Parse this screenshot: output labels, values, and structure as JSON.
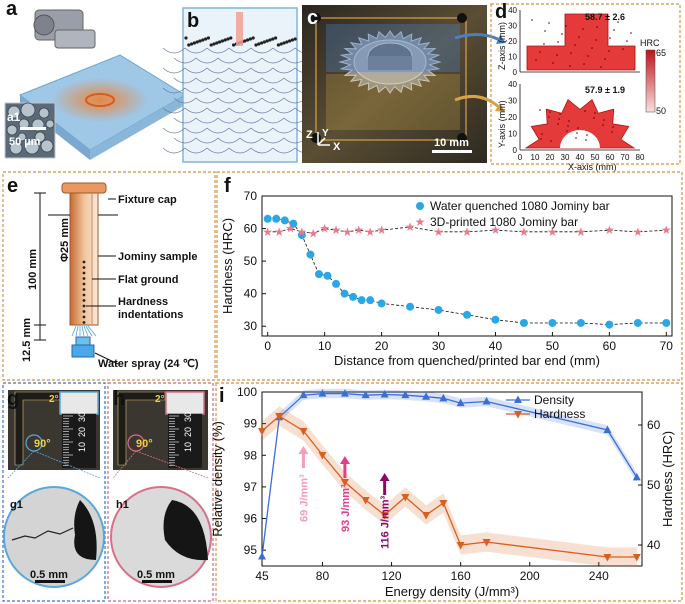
{
  "panels": {
    "a": {
      "label": "a",
      "inset_label": "a1",
      "scale": "50 µm"
    },
    "b": {
      "label": "b"
    },
    "c": {
      "label": "c",
      "scale": "10 mm",
      "axes": [
        "Z",
        "Y",
        "X"
      ]
    },
    "d": {
      "label": "d",
      "top_value": "58.7 ± 2.6",
      "bottom_value": "57.9 ± 1.9",
      "colorbar_title": "HRC",
      "colorbar_max": "65",
      "colorbar_min": "50",
      "top_ylabel": "Z-axis (mm)",
      "bottom_ylabel": "Y-axis (mm)",
      "bottom_xlabel": "X-axis (mm)",
      "top_yticks": [
        "40",
        "30",
        "20",
        "10",
        "0"
      ],
      "bottom_yticks": [
        "40",
        "30",
        "20",
        "10",
        "0"
      ],
      "xticks": [
        "0",
        "10",
        "20",
        "30",
        "40",
        "50",
        "60",
        "70",
        "80"
      ],
      "colors": {
        "low": "#f8d8d8",
        "high": "#c0121a"
      }
    },
    "e": {
      "label": "e",
      "fixture": "Fixture cap",
      "sample": "Jominy sample",
      "flat": "Flat ground",
      "indent": "Hardness\nindentations",
      "dia": "Φ25 mm",
      "len": "100 mm",
      "off": "12.5 mm",
      "water": "Water spray (24 ℃)"
    },
    "g": {
      "label": "g",
      "sub": "g1",
      "angle_top": "2°",
      "angle": "90°",
      "scale": "0.5 mm",
      "ruler": [
        "10",
        "20",
        "30"
      ]
    },
    "h": {
      "label": "h",
      "sub": "h1",
      "angle_top": "2°",
      "angle": "90°",
      "scale": "0.5 mm",
      "ruler": [
        "10",
        "20",
        "30"
      ]
    }
  },
  "chart_data": [
    {
      "type": "scatter",
      "panel": "f",
      "label": "f",
      "xlabel": "Distance from quenched/printed bar end (mm)",
      "ylabel": "Hardness (HRC)",
      "xlim": [
        -1,
        71
      ],
      "ylim": [
        27,
        70
      ],
      "xticks": [
        0,
        10,
        20,
        30,
        40,
        50,
        60,
        70
      ],
      "yticks": [
        30,
        40,
        50,
        60,
        70
      ],
      "legend": "top-right",
      "series": [
        {
          "name": "Water quenched 1080 Jominy bar",
          "marker": "circle",
          "color": "#2aa7e6",
          "x": [
            0,
            1.5,
            3,
            4.5,
            6,
            7.5,
            9,
            10.5,
            12,
            13.5,
            15,
            16.5,
            18,
            20,
            25,
            30,
            35,
            40,
            45,
            50,
            55,
            60,
            65,
            70
          ],
          "y": [
            63,
            63,
            62.5,
            61.5,
            58,
            52,
            46,
            45.5,
            43,
            40,
            39,
            38,
            38,
            37,
            36,
            35,
            33.5,
            32,
            31,
            31,
            31,
            30.5,
            31,
            31
          ]
        },
        {
          "name": "3D-printed 1080 Jominy bar",
          "marker": "star",
          "color": "#e87a8c",
          "x": [
            0,
            2,
            4,
            6,
            8,
            10,
            12,
            14,
            16,
            18,
            20,
            25,
            30,
            35,
            40,
            45,
            50,
            55,
            60,
            65,
            70
          ],
          "y": [
            59,
            59,
            60,
            59,
            58.5,
            60,
            59.5,
            59,
            59.5,
            59,
            59.5,
            60.5,
            59,
            59,
            59.5,
            59,
            59,
            59,
            59.5,
            59,
            59.5
          ]
        }
      ]
    },
    {
      "type": "line",
      "panel": "i",
      "label": "i",
      "xlabel": "Energy density (J/mm³)",
      "ylabel": "Relative density (%)",
      "y2label": "Hardness (HRC)",
      "xlim": [
        45,
        265
      ],
      "ylim": [
        94.5,
        100
      ],
      "y2lim": [
        36.5,
        65.5
      ],
      "xticks": [
        45,
        80,
        120,
        160,
        200,
        240
      ],
      "yticks": [
        95,
        96,
        97,
        98,
        99,
        100
      ],
      "y2ticks": [
        40,
        50,
        60
      ],
      "legend": "top-right",
      "series": [
        {
          "name": "Density",
          "axis": "left",
          "marker": "triangle-up",
          "color": "#3b6fd8",
          "x": [
            45,
            55,
            69,
            80,
            93,
            105,
            116,
            128,
            140,
            150,
            160,
            175,
            245,
            262
          ],
          "y": [
            94.8,
            99.2,
            99.9,
            99.95,
            99.95,
            99.9,
            99.92,
            99.9,
            99.85,
            99.8,
            99.65,
            99.7,
            98.8,
            97.3
          ]
        },
        {
          "name": "Hardness",
          "axis": "right",
          "marker": "triangle-down",
          "color": "#d95f1e",
          "x": [
            45,
            55,
            69,
            80,
            93,
            105,
            116,
            128,
            140,
            150,
            160,
            175,
            245,
            262
          ],
          "y": [
            59,
            61.5,
            59,
            55,
            50.5,
            47.5,
            45,
            48,
            45,
            47,
            40,
            40.5,
            38,
            38
          ]
        }
      ],
      "annotations": [
        {
          "text": "69 J/mm³",
          "x": 69,
          "color": "#f2a0b8"
        },
        {
          "text": "93 J/mm³",
          "x": 93,
          "color": "#e0408a"
        },
        {
          "text": "116 J/mm³",
          "x": 116,
          "color": "#8a0a6a"
        }
      ]
    }
  ]
}
